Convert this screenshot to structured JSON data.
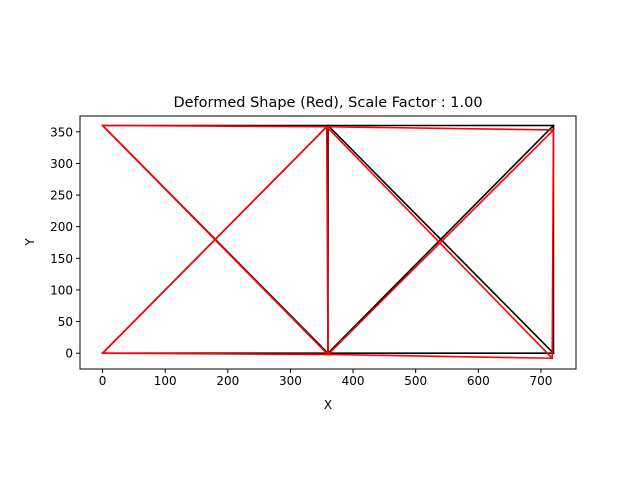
{
  "chart_data": {
    "type": "line",
    "title": "Deformed Shape (Red), Scale Factor : 1.00",
    "xlabel": "X",
    "ylabel": "Y",
    "xlim": [
      -36,
      756
    ],
    "ylim": [
      -25,
      375
    ],
    "xticks": [
      0,
      100,
      200,
      300,
      400,
      500,
      600,
      700
    ],
    "yticks": [
      0,
      50,
      100,
      150,
      200,
      250,
      300,
      350
    ],
    "grid": false,
    "legend": "none",
    "series": [
      {
        "color": "#000000",
        "segments": [
          [
            [
              0,
              0
            ],
            [
              360,
              0
            ]
          ],
          [
            [
              360,
              0
            ],
            [
              720,
              0
            ]
          ],
          [
            [
              0,
              360
            ],
            [
              360,
              360
            ]
          ],
          [
            [
              360,
              360
            ],
            [
              720,
              360
            ]
          ],
          [
            [
              360,
              0
            ],
            [
              360,
              360
            ]
          ],
          [
            [
              720,
              0
            ],
            [
              720,
              360
            ]
          ],
          [
            [
              0,
              360
            ],
            [
              360,
              0
            ]
          ],
          [
            [
              0,
              0
            ],
            [
              360,
              360
            ]
          ],
          [
            [
              360,
              360
            ],
            [
              720,
              0
            ]
          ],
          [
            [
              360,
              0
            ],
            [
              720,
              360
            ]
          ]
        ]
      },
      {
        "color": "#ff0000",
        "segments": [
          [
            [
              0,
              0
            ],
            [
              360,
              -2
            ]
          ],
          [
            [
              360,
              -2
            ],
            [
              718,
              -8
            ]
          ],
          [
            [
              0,
              360
            ],
            [
              358,
              358
            ]
          ],
          [
            [
              358,
              358
            ],
            [
              720,
              353
            ]
          ],
          [
            [
              360,
              -2
            ],
            [
              358,
              358
            ]
          ],
          [
            [
              718,
              -8
            ],
            [
              720,
              353
            ]
          ],
          [
            [
              0,
              360
            ],
            [
              360,
              -2
            ]
          ],
          [
            [
              0,
              0
            ],
            [
              358,
              358
            ]
          ],
          [
            [
              358,
              358
            ],
            [
              718,
              -8
            ]
          ],
          [
            [
              360,
              -2
            ],
            [
              720,
              353
            ]
          ]
        ]
      }
    ]
  }
}
